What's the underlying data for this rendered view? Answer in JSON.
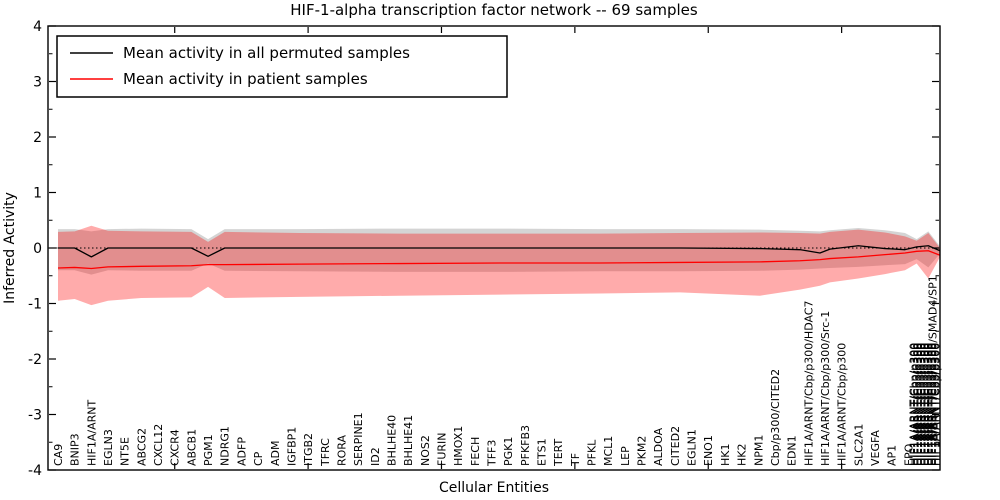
{
  "title": "HIF-1-alpha transcription factor network -- 69 samples",
  "legend": {
    "items": [
      {
        "label": "Mean activity in all permuted samples",
        "color": "#000000"
      },
      {
        "label": "Mean activity in patient samples",
        "color": "#ff0000"
      }
    ]
  },
  "yaxis": {
    "label": "Inferred Activity",
    "ticks": [
      4,
      3,
      2,
      1,
      0,
      -1,
      -2,
      -3,
      -4
    ],
    "lim": [
      -4,
      4
    ]
  },
  "xaxis": {
    "label": "Cellular Entities",
    "cluster": {
      "top_label": "HIF1A/ARNT/Cbp/p300/SMAD4/SP1",
      "smear_label": "HIF1A/ARNT/Cbp/p300",
      "smear_count": 7
    }
  },
  "chart_data": {
    "type": "line",
    "title": "HIF-1-alpha transcription factor network -- 69 samples",
    "xlabel": "Cellular Entities",
    "ylabel": "Inferred Activity",
    "ylim": [
      -4,
      4
    ],
    "zero_line_dotted": true,
    "legend_position": "upper left",
    "categories": [
      "CA9",
      "BNIP3",
      "HIF1A/ARNT",
      "EGLN3",
      "NT5E",
      "ABCG2",
      "CXCL12",
      "CXCR4",
      "ABCB1",
      "PGM1",
      "NDRG1",
      "ADFP",
      "CP",
      "ADM",
      "IGFBP1",
      "ITGB2",
      "TFRC",
      "RORA",
      "SERPINE1",
      "ID2",
      "BHLHE40",
      "BHLHE41",
      "NOS2",
      "FURIN",
      "HMOX1",
      "FECH",
      "TFF3",
      "PGK1",
      "PFKFB3",
      "ETS1",
      "TERT",
      "TF",
      "PFKL",
      "MCL1",
      "LEP",
      "PKM2",
      "ALDOA",
      "CITED2",
      "EGLN1",
      "ENO1",
      "HK1",
      "HK2",
      "NPM1",
      "Cbp/p300/CITED2",
      "EDN1",
      "HIF1A/ARNT/Cbp/p300/HDAC7",
      "HIF1A/ARNT/Cbp/p300/Src-1",
      "HIF1A/ARNT/Cbp/p300",
      "SLC2A1",
      "VEGFA",
      "AP1",
      "EPO"
    ],
    "x_index": [
      0,
      1,
      2,
      3,
      5,
      8,
      9,
      10,
      14.5,
      20.5,
      26.5,
      32.5,
      37.3,
      42.1,
      44.5,
      45.7,
      46.3,
      48,
      49.6,
      50.8,
      51.5,
      52.2,
      52.9
    ],
    "series": [
      {
        "name": "Mean activity in all permuted samples",
        "color": "#000000",
        "values": [
          0,
          0,
          -0.16,
          0,
          0,
          0,
          -0.15,
          0,
          0,
          0,
          0,
          0,
          0,
          -0.01,
          -0.03,
          -0.09,
          -0.02,
          0.04,
          -0.01,
          -0.03,
          0.02,
          0.04,
          -0.05
        ]
      },
      {
        "name": "Mean activity in patient samples",
        "color": "#ff0000",
        "values": [
          -0.36,
          -0.35,
          -0.37,
          -0.34,
          -0.33,
          -0.32,
          -0.3,
          -0.3,
          -0.29,
          -0.28,
          -0.27,
          -0.27,
          -0.26,
          -0.25,
          -0.23,
          -0.21,
          -0.19,
          -0.16,
          -0.12,
          -0.09,
          -0.06,
          -0.05,
          -0.13
        ]
      }
    ],
    "bands": [
      {
        "name": "permuted-std-band",
        "color": "#999999",
        "opacity": 0.42,
        "top": [
          0.34,
          0.34,
          0.3,
          0.34,
          0.35,
          0.34,
          0.16,
          0.34,
          0.34,
          0.35,
          0.35,
          0.34,
          0.34,
          0.33,
          0.31,
          0.3,
          0.32,
          0.36,
          0.32,
          0.27,
          0.16,
          0.3,
          0.03
        ],
        "bottom": [
          -0.4,
          -0.4,
          -0.48,
          -0.4,
          -0.41,
          -0.41,
          -0.28,
          -0.41,
          -0.42,
          -0.43,
          -0.43,
          -0.42,
          -0.42,
          -0.41,
          -0.39,
          -0.37,
          -0.36,
          -0.34,
          -0.31,
          -0.29,
          -0.2,
          -0.35,
          -0.1
        ]
      },
      {
        "name": "patient-std-band",
        "color": "#ff0000",
        "opacity": 0.33,
        "top": [
          0.29,
          0.3,
          0.4,
          0.31,
          0.3,
          0.29,
          0.11,
          0.29,
          0.27,
          0.26,
          0.26,
          0.26,
          0.27,
          0.28,
          0.27,
          0.26,
          0.29,
          0.33,
          0.28,
          0.21,
          0.13,
          0.27,
          0.0
        ],
        "bottom": [
          -0.95,
          -0.92,
          -1.03,
          -0.95,
          -0.9,
          -0.89,
          -0.7,
          -0.9,
          -0.88,
          -0.86,
          -0.84,
          -0.82,
          -0.8,
          -0.86,
          -0.75,
          -0.68,
          -0.62,
          -0.55,
          -0.47,
          -0.4,
          -0.28,
          -0.55,
          -0.16
        ]
      }
    ],
    "top_axis_tick_indices": [
      7,
      15,
      23,
      31,
      39,
      47
    ]
  }
}
